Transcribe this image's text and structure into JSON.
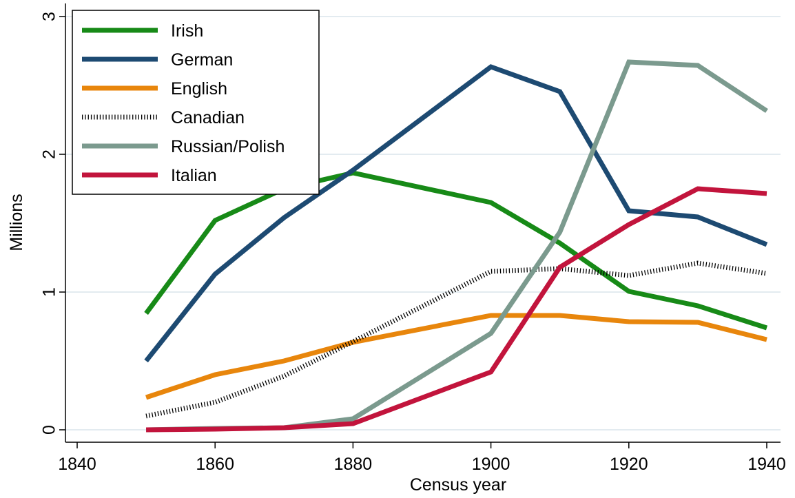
{
  "chart_data": {
    "type": "line",
    "x_label": "Census year",
    "y_label": "Millions",
    "x": [
      1850,
      1860,
      1870,
      1880,
      1900,
      1910,
      1920,
      1930,
      1940
    ],
    "series": [
      {
        "name": "Irish",
        "color": "#178a17",
        "dash": "solid",
        "values": [
          0.845,
          1.52,
          1.75,
          1.865,
          1.65,
          1.355,
          1.005,
          0.9,
          0.74
        ]
      },
      {
        "name": "German",
        "color": "#1d4a72",
        "dash": "solid",
        "values": [
          0.5,
          1.13,
          1.54,
          1.885,
          2.635,
          2.455,
          1.59,
          1.545,
          1.345
        ]
      },
      {
        "name": "English",
        "color": "#e8860c",
        "dash": "solid",
        "values": [
          0.235,
          0.4,
          0.5,
          0.635,
          0.83,
          0.83,
          0.785,
          0.78,
          0.655
        ]
      },
      {
        "name": "Canadian",
        "color": "#000000",
        "dash": "dotted",
        "values": [
          0.1,
          0.2,
          0.39,
          0.64,
          1.15,
          1.17,
          1.12,
          1.21,
          1.135
        ]
      },
      {
        "name": "Russian/Polish",
        "color": "#7b9a8e",
        "dash": "solid",
        "values": [
          0,
          0.01,
          0.015,
          0.08,
          0.7,
          1.435,
          2.67,
          2.645,
          2.315
        ]
      },
      {
        "name": "Italian",
        "color": "#c2143c",
        "dash": "solid",
        "values": [
          0,
          0.005,
          0.015,
          0.045,
          0.42,
          1.18,
          1.49,
          1.75,
          1.715
        ]
      }
    ],
    "xlim": [
      1840,
      1940
    ],
    "xticks": [
      1840,
      1860,
      1880,
      1900,
      1920,
      1940
    ],
    "ylim": [
      0,
      3
    ],
    "yticks": [
      0,
      1,
      2,
      3
    ],
    "grid": true,
    "legend": "upper left"
  }
}
